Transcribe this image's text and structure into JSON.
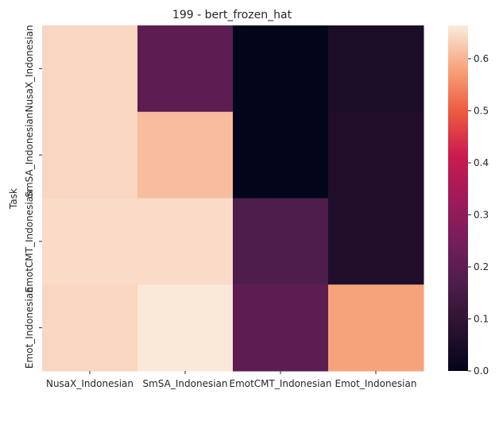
{
  "chart_data": {
    "type": "heatmap",
    "title": "199 - bert_frozen_hat",
    "xlabel": "",
    "ylabel": "Task",
    "x_categories": [
      "NusaX_Indonesian",
      "SmSA_Indonesian",
      "EmotCMT_Indonesian",
      "Emot_Indonesian"
    ],
    "y_categories": [
      "NusaX_Indonesian",
      "SmSA_Indonesian",
      "EmotCMT_Indonesian",
      "Emot_Indonesian"
    ],
    "values": [
      [
        0.64,
        0.2,
        0.0,
        0.05
      ],
      [
        0.64,
        0.61,
        0.0,
        0.06
      ],
      [
        0.645,
        0.645,
        0.17,
        0.06
      ],
      [
        0.64,
        0.66,
        0.2,
        0.58
      ]
    ],
    "colorbar": {
      "min": 0.0,
      "max": 0.664,
      "ticks": [
        "0.0",
        "0.1",
        "0.2",
        "0.3",
        "0.4",
        "0.5",
        "0.6"
      ],
      "tick_values": [
        0.0,
        0.1,
        0.2,
        0.3,
        0.4,
        0.5,
        0.6
      ],
      "colormap": "rocket"
    }
  }
}
